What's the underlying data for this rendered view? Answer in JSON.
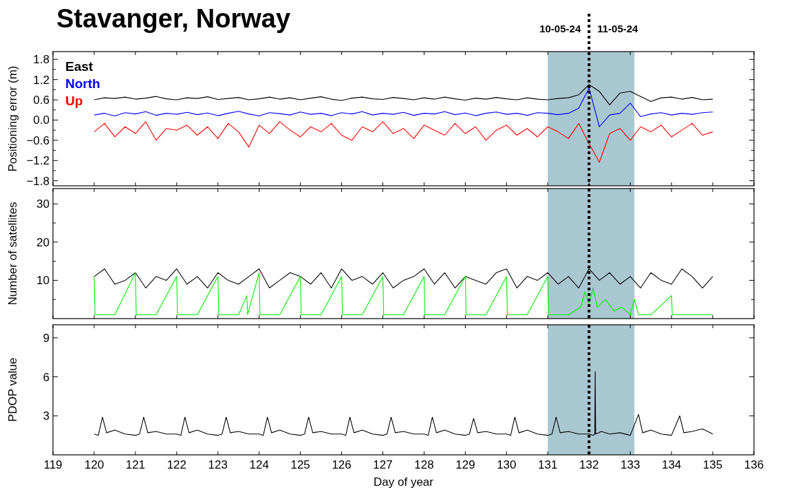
{
  "chart_data": [
    {
      "type": "line",
      "title": "Stavanger, Norway",
      "ylabel": "Positioning error (m)",
      "xlim": [
        119,
        136
      ],
      "xticks": [
        119,
        120,
        121,
        122,
        123,
        124,
        125,
        126,
        127,
        128,
        129,
        130,
        131,
        132,
        133,
        134,
        135,
        136
      ],
      "ylim": [
        -1.95,
        2.03
      ],
      "yticks": [
        -1.8,
        {
          "value": -1.5,
          "label": null
        },
        -1.2,
        {
          "value": -0.9,
          "label": null
        },
        -0.6,
        {
          "value": -0.3,
          "label": null
        },
        {
          "value": 0,
          "label": "0.0"
        },
        {
          "value": 0.3,
          "label": null
        },
        0.6,
        {
          "value": 0.9,
          "label": null
        },
        1.2,
        {
          "value": 1.5,
          "label": null
        },
        1.8
      ],
      "tick_labels": "y",
      "legend": "top left",
      "annotations": [
        "10-05-24",
        "11-05-24"
      ],
      "ref_lines": [
        {
          "axis": "x",
          "value": 132,
          "color": "#000000",
          "line_style": "dotted"
        }
      ],
      "bands": [
        {
          "axis": "x",
          "from": 131,
          "to": 133.1,
          "color": "#a9c7d1"
        }
      ],
      "x": [
        120,
        120.25,
        120.5,
        120.75,
        121,
        121.25,
        121.5,
        121.75,
        122,
        122.25,
        122.5,
        122.75,
        123,
        123.25,
        123.5,
        123.75,
        124,
        124.25,
        124.5,
        124.75,
        125,
        125.25,
        125.5,
        125.75,
        126,
        126.25,
        126.5,
        126.75,
        127,
        127.25,
        127.5,
        127.75,
        128,
        128.25,
        128.5,
        128.75,
        129,
        129.25,
        129.5,
        129.75,
        130,
        130.25,
        130.5,
        130.75,
        131,
        131.25,
        131.5,
        131.75,
        132,
        132.25,
        132.5,
        132.75,
        133,
        133.25,
        133.5,
        133.75,
        134,
        134.25,
        134.5,
        134.75,
        135
      ],
      "series": [
        {
          "name": "East",
          "color": "#000000",
          "values": [
            0.6,
            0.66,
            0.64,
            0.68,
            0.62,
            0.65,
            0.7,
            0.63,
            0.6,
            0.66,
            0.64,
            0.69,
            0.61,
            0.64,
            0.67,
            0.6,
            0.63,
            0.68,
            0.62,
            0.66,
            0.6,
            0.65,
            0.69,
            0.62,
            0.58,
            0.65,
            0.68,
            0.63,
            0.61,
            0.67,
            0.64,
            0.6,
            0.66,
            0.62,
            0.68,
            0.63,
            0.59,
            0.65,
            0.62,
            0.67,
            0.63,
            0.6,
            0.66,
            0.62,
            0.6,
            0.64,
            0.66,
            0.75,
            1.05,
            0.85,
            0.45,
            0.8,
            0.85,
            0.7,
            0.55,
            0.66,
            0.68,
            0.62,
            0.67,
            0.6,
            0.62
          ]
        },
        {
          "name": "North",
          "color": "#0000ff",
          "values": [
            0.15,
            0.2,
            0.12,
            0.22,
            0.18,
            0.25,
            0.14,
            0.2,
            0.17,
            0.23,
            0.16,
            0.21,
            0.13,
            0.2,
            0.26,
            0.18,
            0.12,
            0.22,
            0.19,
            0.15,
            0.24,
            0.17,
            0.2,
            0.13,
            0.22,
            0.18,
            0.25,
            0.15,
            0.2,
            0.17,
            0.23,
            0.14,
            0.2,
            0.18,
            0.25,
            0.16,
            0.21,
            0.13,
            0.2,
            0.24,
            0.17,
            0.2,
            0.14,
            0.22,
            0.2,
            0.16,
            0.2,
            0.35,
            0.95,
            -0.2,
            0.15,
            0.2,
            0.5,
            0.1,
            0.18,
            0.22,
            0.15,
            0.2,
            0.17,
            0.22,
            0.24
          ]
        },
        {
          "name": "Up",
          "color": "#ff0000",
          "values": [
            -0.35,
            -0.1,
            -0.5,
            -0.2,
            -0.4,
            -0.05,
            -0.6,
            -0.25,
            -0.3,
            -0.15,
            -0.45,
            -0.2,
            -0.55,
            -0.1,
            -0.35,
            -0.8,
            -0.15,
            -0.4,
            -0.05,
            -0.3,
            -0.5,
            -0.2,
            -0.35,
            -0.1,
            -0.45,
            -0.6,
            -0.2,
            -0.35,
            -0.05,
            -0.4,
            -0.25,
            -0.55,
            -0.15,
            -0.3,
            -0.45,
            -0.1,
            -0.4,
            -0.2,
            -0.6,
            -0.3,
            -0.15,
            -0.45,
            -0.25,
            -0.5,
            -0.2,
            -0.35,
            -0.55,
            -0.1,
            -0.7,
            -1.25,
            -0.4,
            -0.25,
            -0.6,
            -0.2,
            -0.35,
            -0.15,
            -0.5,
            -0.3,
            -0.1,
            -0.45,
            -0.35
          ]
        }
      ]
    },
    {
      "type": "line",
      "ylabel": "Number of satellites",
      "xlim": [
        119,
        136
      ],
      "xticks": [
        119,
        120,
        121,
        122,
        123,
        124,
        125,
        126,
        127,
        128,
        129,
        130,
        131,
        132,
        133,
        134,
        135,
        136
      ],
      "ylim": [
        0,
        34
      ],
      "yticks": [
        {
          "value": 5,
          "label": null
        },
        10,
        {
          "value": 15,
          "label": null
        },
        20,
        {
          "value": 25,
          "label": null
        },
        30
      ],
      "tick_labels": "y",
      "ref_lines": [
        {
          "axis": "x",
          "value": 132,
          "color": "#000000",
          "line_style": "dotted"
        }
      ],
      "bands": [
        {
          "axis": "x",
          "from": 131,
          "to": 133.1,
          "color": "#a9c7d1"
        }
      ],
      "series": [
        {
          "color": "#000000",
          "x": [
            120,
            120.25,
            120.5,
            120.75,
            121,
            121.25,
            121.5,
            121.75,
            122,
            122.25,
            122.5,
            122.75,
            123,
            123.25,
            123.5,
            123.75,
            124,
            124.25,
            124.5,
            124.75,
            125,
            125.25,
            125.5,
            125.75,
            126,
            126.25,
            126.5,
            126.75,
            127,
            127.25,
            127.5,
            127.75,
            128,
            128.25,
            128.5,
            128.75,
            129,
            129.25,
            129.5,
            129.75,
            130,
            130.25,
            130.5,
            130.75,
            131,
            131.25,
            131.5,
            131.75,
            132,
            132.25,
            132.5,
            132.75,
            133,
            133.25,
            133.5,
            133.75,
            134,
            134.25,
            134.5,
            134.75,
            135
          ],
          "values": [
            11,
            13,
            9,
            10,
            12,
            8,
            11,
            10,
            13,
            9,
            11,
            8,
            12,
            10,
            9,
            11,
            13,
            8,
            10,
            12,
            11,
            9,
            12,
            8,
            13,
            10,
            11,
            9,
            12,
            8,
            10,
            11,
            13,
            9,
            12,
            8,
            11,
            10,
            9,
            12,
            13,
            8,
            11,
            10,
            12,
            9,
            11,
            8,
            13,
            10,
            12,
            9,
            11,
            8,
            12,
            10,
            9,
            13,
            11,
            8,
            11
          ]
        },
        {
          "color": "#00ee00",
          "x": [
            120,
            120.02,
            120.5,
            121,
            121.02,
            121.5,
            122,
            122.02,
            122.5,
            123,
            123.02,
            123.5,
            123.7,
            123.72,
            124,
            124.02,
            124.5,
            125,
            125.02,
            125.5,
            126,
            126.02,
            126.5,
            127,
            127.02,
            127.5,
            128,
            128.02,
            128.5,
            129,
            129.02,
            129.5,
            130,
            130.02,
            130.5,
            131,
            131.02,
            131.5,
            131.8,
            131.9,
            132,
            132.1,
            132.2,
            132.4,
            132.6,
            132.8,
            133,
            133.1,
            133.2,
            133.5,
            134,
            134.02,
            134.5,
            135
          ],
          "values": [
            11,
            1,
            1,
            12,
            1,
            1,
            11,
            1,
            1,
            11,
            1,
            1,
            6,
            1,
            12,
            1,
            1,
            11,
            1,
            1,
            11,
            1,
            1,
            11,
            1,
            1,
            11,
            1,
            1,
            11,
            1,
            1,
            11,
            1,
            1,
            11,
            1,
            1,
            3,
            7,
            4,
            8,
            3,
            5,
            2,
            3,
            1,
            5,
            1,
            1,
            6,
            1,
            1,
            1
          ]
        }
      ]
    },
    {
      "type": "line",
      "ylabel": "PDOP value",
      "xlabel": "Day of year",
      "xlim": [
        119,
        136
      ],
      "xticks": [
        119,
        120,
        121,
        122,
        123,
        124,
        125,
        126,
        127,
        128,
        129,
        130,
        131,
        132,
        133,
        134,
        135,
        136
      ],
      "ylim": [
        0,
        10
      ],
      "yticks": [
        3,
        6,
        9
      ],
      "ref_lines": [
        {
          "axis": "x",
          "value": 132,
          "color": "#000000",
          "line_style": "dotted"
        }
      ],
      "bands": [
        {
          "axis": "x",
          "from": 131,
          "to": 133.1,
          "color": "#a9c7d1"
        }
      ],
      "series": [
        {
          "color": "#000000",
          "x": [
            120,
            120.1,
            120.2,
            120.3,
            120.5,
            120.75,
            121,
            121.1,
            121.2,
            121.3,
            121.5,
            121.75,
            122,
            122.1,
            122.2,
            122.3,
            122.5,
            122.75,
            123,
            123.1,
            123.2,
            123.3,
            123.5,
            123.75,
            124,
            124.1,
            124.2,
            124.3,
            124.5,
            124.75,
            125,
            125.1,
            125.2,
            125.3,
            125.5,
            125.75,
            126,
            126.1,
            126.2,
            126.3,
            126.5,
            126.75,
            127,
            127.1,
            127.2,
            127.3,
            127.5,
            127.75,
            128,
            128.1,
            128.2,
            128.3,
            128.5,
            128.75,
            129,
            129.1,
            129.2,
            129.3,
            129.5,
            129.75,
            130,
            130.1,
            130.2,
            130.3,
            130.5,
            130.75,
            131,
            131.1,
            131.2,
            131.3,
            131.5,
            131.75,
            132,
            132.1,
            132.14,
            132.15,
            132.16,
            132.3,
            132.5,
            132.75,
            133,
            133.2,
            133.3,
            133.5,
            133.75,
            134,
            134.2,
            134.3,
            134.5,
            134.75,
            135
          ],
          "values": [
            1.6,
            1.5,
            2.9,
            1.7,
            1.9,
            1.6,
            1.5,
            1.6,
            2.9,
            1.7,
            1.8,
            1.6,
            1.6,
            1.5,
            2.9,
            1.7,
            1.9,
            1.6,
            1.5,
            1.6,
            2.9,
            1.7,
            1.8,
            1.6,
            1.6,
            1.5,
            2.9,
            1.7,
            1.9,
            1.6,
            1.5,
            1.6,
            2.9,
            1.7,
            1.8,
            1.6,
            1.6,
            1.5,
            2.9,
            1.7,
            1.9,
            1.6,
            1.5,
            1.6,
            2.9,
            1.7,
            1.8,
            1.6,
            1.6,
            1.5,
            2.9,
            1.7,
            1.9,
            1.6,
            1.5,
            1.6,
            2.8,
            1.7,
            1.8,
            1.6,
            1.6,
            1.5,
            2.9,
            1.7,
            1.9,
            1.6,
            1.5,
            1.6,
            2.9,
            1.7,
            1.8,
            1.6,
            1.6,
            1.5,
            1.6,
            6.4,
            1.6,
            1.8,
            1.6,
            1.7,
            1.5,
            3.1,
            1.7,
            1.9,
            1.6,
            1.5,
            3.0,
            1.7,
            1.8,
            2.0,
            1.6
          ]
        }
      ]
    }
  ]
}
